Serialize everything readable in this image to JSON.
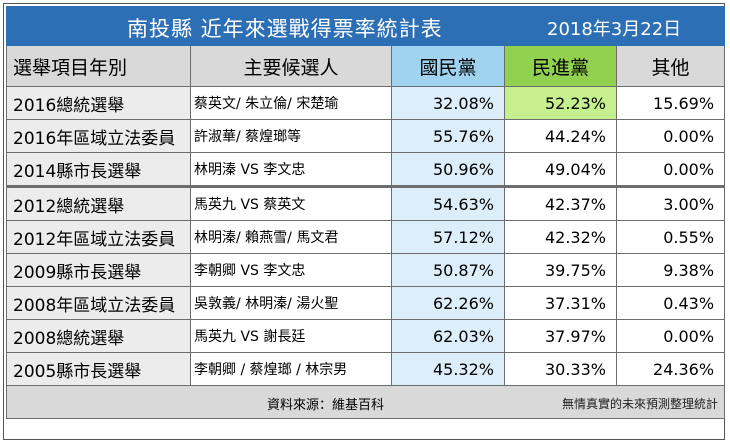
{
  "title": "南投縣 近年來選戰得票率統計表",
  "date": "2018年3月22日",
  "columns": {
    "item": "選舉項目年別",
    "candidates": "主要候選人",
    "kmt": "國民黨",
    "dpp": "民進黨",
    "other": "其他"
  },
  "rows": [
    {
      "item": "2016總統選舉",
      "candidates": "蔡英文/ 朱立倫/ 宋楚瑜",
      "kmt": "32.08%",
      "dpp": "52.23%",
      "other": "15.69%"
    },
    {
      "item": "2016年區域立法委員",
      "candidates": "許淑華/ 蔡煌瑯等",
      "kmt": "55.76%",
      "dpp": "44.24%",
      "other": "0.00%"
    },
    {
      "item": "2014縣市長選舉",
      "candidates": "林明溱 VS 李文忠",
      "kmt": "50.96%",
      "dpp": "49.04%",
      "other": "0.00%"
    },
    {
      "item": "2012總統選舉",
      "candidates": "馬英九 VS 蔡英文",
      "kmt": "54.63%",
      "dpp": "42.37%",
      "other": "3.00%"
    },
    {
      "item": "2012年區域立法委員",
      "candidates": "林明溱/ 賴燕雪/ 馬文君",
      "kmt": "57.12%",
      "dpp": "42.32%",
      "other": "0.55%"
    },
    {
      "item": "2009縣市長選舉",
      "candidates": "李朝卿 VS 李文忠",
      "kmt": "50.87%",
      "dpp": "39.75%",
      "other": "9.38%"
    },
    {
      "item": "2008年區域立法委員",
      "candidates": "吳敦義/ 林明溱/ 湯火聖",
      "kmt": "62.26%",
      "dpp": "37.31%",
      "other": "0.43%"
    },
    {
      "item": "2008總統選舉",
      "candidates": "馬英九 VS 謝長廷",
      "kmt": "62.03%",
      "dpp": "37.97%",
      "other": "0.00%"
    },
    {
      "item": "2005縣市長選舉",
      "candidates": "李朝卿 / 蔡煌瑯 / 林宗男",
      "kmt": "45.32%",
      "dpp": "30.33%",
      "other": "24.36%"
    }
  ],
  "footer": {
    "source": "資料來源：維基百科",
    "note": "無情真實的未來預測整理統計"
  },
  "colors": {
    "title_bg": "#2d6fb5",
    "kmt_header": "#9fd3f0",
    "kmt_cell": "#dbeef9",
    "dpp_header": "#92d050",
    "dpp_highlight": "#c6ef8e",
    "header_gray": "#d9d9d9"
  }
}
